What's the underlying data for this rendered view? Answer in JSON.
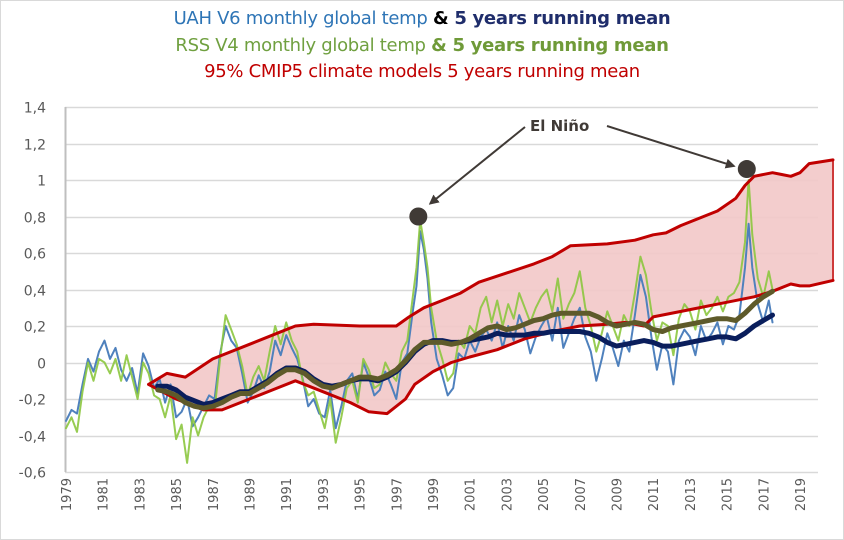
{
  "chart_data": {
    "type": "line",
    "title_lines": [
      {
        "parts": [
          {
            "text": "UAH V6 monthly global temp ",
            "style": "uah"
          },
          {
            "text": "& ",
            "style": "amp"
          },
          {
            "text": " 5 years running mean",
            "style": "uahmean"
          }
        ]
      },
      {
        "parts": [
          {
            "text": "RSS V4 monthly global temp ",
            "style": "rss"
          },
          {
            "text": "& 5 years running mean",
            "style": "rssmean"
          }
        ]
      },
      {
        "parts": [
          {
            "text": "95% CMIP5 climate models 5 years running mean",
            "style": "cmip"
          }
        ]
      }
    ],
    "xlabel": "",
    "ylabel": "",
    "xlim": [
      1979,
      2020.8
    ],
    "ylim": [
      -0.6,
      1.4
    ],
    "grid": true,
    "y_ticks": [
      1.4,
      1.2,
      1.0,
      0.8,
      0.6,
      0.4,
      0.2,
      0,
      -0.2,
      -0.4,
      -0.6
    ],
    "y_tick_labels": [
      "1,4",
      "1,2",
      "1",
      "0,8",
      "0,6",
      "0,4",
      "0,2",
      "0",
      "-0,2",
      "-0,4",
      "-0,6"
    ],
    "x_tick_labels": [
      "1979",
      "1981",
      "1983",
      "1985",
      "1987",
      "1989",
      "1991",
      "1993",
      "1995",
      "1997",
      "1999",
      "2001",
      "2003",
      "2005",
      "2007",
      "2009",
      "2011",
      "2013",
      "2015",
      "2017",
      "2019"
    ],
    "colors": {
      "uah_monthly": "#4f81bd",
      "rss_monthly": "#8cc63f",
      "uah_mean": "#0a1e5c",
      "rss_mean": "#5e5a2a",
      "model_band_line": "#c00000",
      "model_band_fill": "#f2c8c8",
      "grid": "#d9d9d9",
      "annotation": "#403a36"
    },
    "annotation": {
      "text": "El Niño",
      "points": [
        {
          "x": 1998.2,
          "y": 0.8
        },
        {
          "x": 2016.1,
          "y": 1.06
        }
      ]
    },
    "series": [
      {
        "name": "UAH V6 monthly global temp",
        "key": "uah_monthly",
        "x": [
          1979.0,
          1979.3,
          1979.6,
          1979.9,
          1980.2,
          1980.5,
          1980.8,
          1981.1,
          1981.4,
          1981.7,
          1982.0,
          1982.3,
          1982.6,
          1982.9,
          1983.2,
          1983.5,
          1983.8,
          1984.1,
          1984.4,
          1984.7,
          1985.0,
          1985.3,
          1985.6,
          1985.9,
          1986.2,
          1986.5,
          1986.8,
          1987.1,
          1987.4,
          1987.7,
          1988.0,
          1988.3,
          1988.6,
          1988.9,
          1989.2,
          1989.5,
          1989.8,
          1990.1,
          1990.4,
          1990.7,
          1991.0,
          1991.3,
          1991.6,
          1991.9,
          1992.2,
          1992.5,
          1992.8,
          1993.1,
          1993.4,
          1993.7,
          1994.0,
          1994.3,
          1994.6,
          1994.9,
          1995.2,
          1995.5,
          1995.8,
          1996.1,
          1996.4,
          1996.7,
          1997.0,
          1997.3,
          1997.6,
          1997.9,
          1998.1,
          1998.3,
          1998.5,
          1998.7,
          1998.9,
          1999.2,
          1999.5,
          1999.8,
          2000.1,
          2000.4,
          2000.7,
          2001.0,
          2001.3,
          2001.6,
          2001.9,
          2002.2,
          2002.5,
          2002.8,
          2003.1,
          2003.4,
          2003.7,
          2004.0,
          2004.3,
          2004.6,
          2004.9,
          2005.2,
          2005.5,
          2005.8,
          2006.1,
          2006.4,
          2006.7,
          2007.0,
          2007.3,
          2007.6,
          2007.9,
          2008.2,
          2008.5,
          2008.8,
          2009.1,
          2009.4,
          2009.7,
          2010.0,
          2010.3,
          2010.6,
          2010.9,
          2011.2,
          2011.5,
          2011.8,
          2012.1,
          2012.4,
          2012.7,
          2013.0,
          2013.3,
          2013.6,
          2013.9,
          2014.2,
          2014.5,
          2014.8,
          2015.1,
          2015.4,
          2015.7,
          2016.0,
          2016.2,
          2016.4,
          2016.7,
          2017.0,
          2017.3,
          2017.5
        ],
        "values": [
          -0.32,
          -0.26,
          -0.28,
          -0.12,
          0.02,
          -0.05,
          0.06,
          0.12,
          0.02,
          0.08,
          -0.04,
          -0.1,
          -0.03,
          -0.17,
          0.05,
          -0.02,
          -0.14,
          -0.09,
          -0.22,
          -0.12,
          -0.3,
          -0.27,
          -0.2,
          -0.35,
          -0.3,
          -0.24,
          -0.18,
          -0.2,
          0.05,
          0.2,
          0.12,
          0.08,
          -0.06,
          -0.22,
          -0.16,
          -0.07,
          -0.14,
          -0.05,
          0.12,
          0.04,
          0.15,
          0.08,
          0.02,
          -0.09,
          -0.24,
          -0.2,
          -0.28,
          -0.3,
          -0.15,
          -0.36,
          -0.24,
          -0.1,
          -0.06,
          -0.2,
          0.0,
          -0.08,
          -0.18,
          -0.15,
          -0.05,
          -0.12,
          -0.2,
          0.0,
          0.05,
          0.28,
          0.42,
          0.72,
          0.62,
          0.46,
          0.22,
          0.02,
          -0.07,
          -0.18,
          -0.14,
          0.05,
          0.02,
          0.12,
          0.06,
          0.14,
          0.18,
          0.12,
          0.22,
          0.08,
          0.2,
          0.12,
          0.26,
          0.18,
          0.05,
          0.14,
          0.2,
          0.25,
          0.12,
          0.3,
          0.08,
          0.16,
          0.24,
          0.3,
          0.14,
          0.06,
          -0.1,
          0.02,
          0.16,
          0.08,
          -0.02,
          0.12,
          0.06,
          0.26,
          0.48,
          0.36,
          0.14,
          -0.04,
          0.1,
          0.06,
          -0.12,
          0.12,
          0.18,
          0.14,
          0.04,
          0.2,
          0.12,
          0.16,
          0.22,
          0.1,
          0.2,
          0.18,
          0.26,
          0.52,
          0.76,
          0.52,
          0.32,
          0.22,
          0.34,
          0.22
        ]
      },
      {
        "name": "RSS V4 monthly global temp",
        "key": "rss_monthly",
        "x": [
          1979.0,
          1979.3,
          1979.6,
          1979.9,
          1980.2,
          1980.5,
          1980.8,
          1981.1,
          1981.4,
          1981.7,
          1982.0,
          1982.3,
          1982.6,
          1982.9,
          1983.2,
          1983.5,
          1983.8,
          1984.1,
          1984.4,
          1984.7,
          1985.0,
          1985.3,
          1985.6,
          1985.9,
          1986.2,
          1986.5,
          1986.8,
          1987.1,
          1987.4,
          1987.7,
          1988.0,
          1988.3,
          1988.6,
          1988.9,
          1989.2,
          1989.5,
          1989.8,
          1990.1,
          1990.4,
          1990.7,
          1991.0,
          1991.3,
          1991.6,
          1991.9,
          1992.2,
          1992.5,
          1992.8,
          1993.1,
          1993.4,
          1993.7,
          1994.0,
          1994.3,
          1994.6,
          1994.9,
          1995.2,
          1995.5,
          1995.8,
          1996.1,
          1996.4,
          1996.7,
          1997.0,
          1997.3,
          1997.6,
          1997.9,
          1998.1,
          1998.3,
          1998.5,
          1998.7,
          1998.9,
          1999.2,
          1999.5,
          1999.8,
          2000.1,
          2000.4,
          2000.7,
          2001.0,
          2001.3,
          2001.6,
          2001.9,
          2002.2,
          2002.5,
          2002.8,
          2003.1,
          2003.4,
          2003.7,
          2004.0,
          2004.3,
          2004.6,
          2004.9,
          2005.2,
          2005.5,
          2005.8,
          2006.1,
          2006.4,
          2006.7,
          2007.0,
          2007.3,
          2007.6,
          2007.9,
          2008.2,
          2008.5,
          2008.8,
          2009.1,
          2009.4,
          2009.7,
          2010.0,
          2010.3,
          2010.6,
          2010.9,
          2011.2,
          2011.5,
          2011.8,
          2012.1,
          2012.4,
          2012.7,
          2013.0,
          2013.3,
          2013.6,
          2013.9,
          2014.2,
          2014.5,
          2014.8,
          2015.1,
          2015.4,
          2015.7,
          2016.0,
          2016.2,
          2016.4,
          2016.7,
          2017.0,
          2017.3,
          2017.5
        ],
        "values": [
          -0.36,
          -0.3,
          -0.38,
          -0.16,
          0.0,
          -0.1,
          0.02,
          0.0,
          -0.06,
          0.02,
          -0.1,
          0.04,
          -0.08,
          -0.2,
          0.0,
          -0.06,
          -0.18,
          -0.2,
          -0.3,
          -0.18,
          -0.42,
          -0.34,
          -0.55,
          -0.3,
          -0.4,
          -0.3,
          -0.24,
          -0.26,
          0.02,
          0.26,
          0.18,
          0.1,
          -0.02,
          -0.18,
          -0.08,
          -0.02,
          -0.1,
          0.06,
          0.2,
          0.1,
          0.22,
          0.12,
          0.06,
          -0.1,
          -0.18,
          -0.16,
          -0.26,
          -0.36,
          -0.2,
          -0.44,
          -0.3,
          -0.14,
          -0.1,
          -0.22,
          0.02,
          -0.04,
          -0.14,
          -0.12,
          0.0,
          -0.06,
          -0.1,
          0.06,
          0.12,
          0.36,
          0.52,
          0.78,
          0.66,
          0.52,
          0.3,
          0.12,
          0.02,
          -0.1,
          -0.06,
          0.12,
          0.08,
          0.2,
          0.16,
          0.3,
          0.36,
          0.22,
          0.34,
          0.2,
          0.32,
          0.24,
          0.38,
          0.3,
          0.22,
          0.3,
          0.36,
          0.4,
          0.28,
          0.46,
          0.24,
          0.32,
          0.38,
          0.5,
          0.3,
          0.2,
          0.06,
          0.16,
          0.28,
          0.2,
          0.12,
          0.26,
          0.2,
          0.38,
          0.58,
          0.48,
          0.28,
          0.12,
          0.22,
          0.2,
          0.04,
          0.24,
          0.32,
          0.28,
          0.18,
          0.34,
          0.26,
          0.3,
          0.36,
          0.28,
          0.36,
          0.38,
          0.44,
          0.66,
          1.0,
          0.7,
          0.46,
          0.36,
          0.5,
          0.4
        ]
      },
      {
        "name": "UAH 5 years running mean",
        "key": "uah_mean",
        "x": [
          1984.0,
          1984.5,
          1985.0,
          1985.5,
          1986.0,
          1986.5,
          1987.0,
          1987.5,
          1988.0,
          1988.5,
          1989.0,
          1989.5,
          1990.0,
          1990.5,
          1991.0,
          1991.5,
          1992.0,
          1992.5,
          1993.0,
          1993.5,
          1994.0,
          1994.5,
          1995.0,
          1995.5,
          1996.0,
          1996.5,
          1997.0,
          1997.5,
          1998.0,
          1998.5,
          1999.0,
          1999.5,
          2000.0,
          2000.5,
          2001.0,
          2001.5,
          2002.0,
          2002.5,
          2003.0,
          2003.5,
          2004.0,
          2004.5,
          2005.0,
          2005.5,
          2006.0,
          2006.5,
          2007.0,
          2007.5,
          2008.0,
          2008.5,
          2009.0,
          2009.5,
          2010.0,
          2010.5,
          2011.0,
          2011.5,
          2012.0,
          2012.5,
          2013.0,
          2013.5,
          2014.0,
          2014.5,
          2015.0,
          2015.5,
          2016.0,
          2016.5,
          2017.0,
          2017.5
        ],
        "values": [
          -0.13,
          -0.13,
          -0.15,
          -0.19,
          -0.21,
          -0.23,
          -0.22,
          -0.2,
          -0.18,
          -0.16,
          -0.16,
          -0.13,
          -0.1,
          -0.06,
          -0.03,
          -0.03,
          -0.05,
          -0.09,
          -0.12,
          -0.13,
          -0.12,
          -0.1,
          -0.09,
          -0.09,
          -0.1,
          -0.08,
          -0.05,
          0.0,
          0.06,
          0.1,
          0.12,
          0.12,
          0.11,
          0.11,
          0.12,
          0.13,
          0.14,
          0.16,
          0.15,
          0.15,
          0.15,
          0.16,
          0.16,
          0.17,
          0.17,
          0.17,
          0.17,
          0.16,
          0.14,
          0.11,
          0.09,
          0.1,
          0.11,
          0.12,
          0.11,
          0.09,
          0.09,
          0.1,
          0.11,
          0.12,
          0.13,
          0.14,
          0.14,
          0.13,
          0.16,
          0.2,
          0.23,
          0.26
        ]
      },
      {
        "name": "RSS 5 years running mean",
        "key": "rss_mean",
        "x": [
          1984.0,
          1984.5,
          1985.0,
          1985.5,
          1986.0,
          1986.5,
          1987.0,
          1987.5,
          1988.0,
          1988.5,
          1989.0,
          1989.5,
          1990.0,
          1990.5,
          1991.0,
          1991.5,
          1992.0,
          1992.5,
          1993.0,
          1993.5,
          1994.0,
          1994.5,
          1995.0,
          1995.5,
          1996.0,
          1996.5,
          1997.0,
          1997.5,
          1998.0,
          1998.5,
          1999.0,
          1999.5,
          2000.0,
          2000.5,
          2001.0,
          2001.5,
          2002.0,
          2002.5,
          2003.0,
          2003.5,
          2004.0,
          2004.5,
          2005.0,
          2005.5,
          2006.0,
          2006.5,
          2007.0,
          2007.5,
          2008.0,
          2008.5,
          2009.0,
          2009.5,
          2010.0,
          2010.5,
          2011.0,
          2011.5,
          2012.0,
          2012.5,
          2013.0,
          2013.5,
          2014.0,
          2014.5,
          2015.0,
          2015.5,
          2016.0,
          2016.5,
          2017.0,
          2017.5
        ],
        "values": [
          -0.15,
          -0.16,
          -0.18,
          -0.22,
          -0.24,
          -0.25,
          -0.24,
          -0.22,
          -0.19,
          -0.17,
          -0.17,
          -0.14,
          -0.11,
          -0.07,
          -0.04,
          -0.04,
          -0.06,
          -0.1,
          -0.13,
          -0.14,
          -0.12,
          -0.1,
          -0.08,
          -0.08,
          -0.09,
          -0.07,
          -0.04,
          0.01,
          0.07,
          0.11,
          0.11,
          0.11,
          0.1,
          0.11,
          0.13,
          0.16,
          0.19,
          0.2,
          0.18,
          0.19,
          0.21,
          0.23,
          0.24,
          0.26,
          0.27,
          0.27,
          0.27,
          0.27,
          0.25,
          0.22,
          0.2,
          0.21,
          0.22,
          0.21,
          0.18,
          0.17,
          0.19,
          0.2,
          0.21,
          0.22,
          0.23,
          0.24,
          0.24,
          0.23,
          0.27,
          0.32,
          0.36,
          0.39
        ]
      },
      {
        "name": "95% CMIP5 climate models 5 years running mean (upper)",
        "key": "model_upper",
        "x": [
          1983.5,
          1984.5,
          1985.5,
          1987.0,
          1989.0,
          1990.5,
          1991.5,
          1992.5,
          1995.0,
          1997.0,
          1997.7,
          1998.5,
          1999.5,
          2000.5,
          2001.5,
          2003.0,
          2004.5,
          2005.5,
          2006.5,
          2008.5,
          2010.0,
          2011.0,
          2011.7,
          2012.5,
          2014.5,
          2015.5,
          2016.0,
          2016.5,
          2017.5,
          2018.0,
          2018.5,
          2019.0,
          2019.5,
          2020.8
        ],
        "values": [
          -0.12,
          -0.06,
          -0.08,
          0.02,
          0.1,
          0.16,
          0.2,
          0.21,
          0.2,
          0.2,
          0.25,
          0.3,
          0.34,
          0.38,
          0.44,
          0.49,
          0.54,
          0.58,
          0.64,
          0.65,
          0.67,
          0.7,
          0.71,
          0.75,
          0.83,
          0.9,
          0.97,
          1.02,
          1.04,
          1.03,
          1.02,
          1.04,
          1.09,
          1.11
        ]
      },
      {
        "name": "95% CMIP5 climate models 5 years running mean (lower)",
        "key": "model_lower",
        "x": [
          1983.5,
          1985.0,
          1986.5,
          1987.5,
          1989.0,
          1990.5,
          1991.5,
          1993.0,
          1994.5,
          1995.5,
          1996.5,
          1997.5,
          1998.0,
          1999.0,
          2000.0,
          2001.0,
          2002.5,
          2004.0,
          2005.5,
          2007.0,
          2008.5,
          2009.5,
          2010.5,
          2011.0,
          2013.0,
          2015.0,
          2016.5,
          2017.5,
          2018.5,
          2019.0,
          2019.5,
          2020.8
        ],
        "values": [
          -0.12,
          -0.2,
          -0.26,
          -0.26,
          -0.2,
          -0.14,
          -0.1,
          -0.16,
          -0.22,
          -0.27,
          -0.28,
          -0.2,
          -0.12,
          -0.05,
          0.0,
          0.03,
          0.07,
          0.13,
          0.17,
          0.2,
          0.21,
          0.22,
          0.2,
          0.25,
          0.29,
          0.33,
          0.36,
          0.39,
          0.43,
          0.42,
          0.42,
          0.45
        ]
      }
    ]
  }
}
